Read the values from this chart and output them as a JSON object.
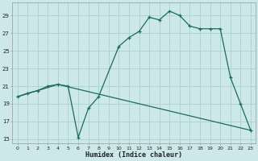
{
  "xlabel": "Humidex (Indice chaleur)",
  "bg_color": "#cce8e8",
  "line_color": "#1a6b62",
  "grid_color": "#aad0d0",
  "series_humidex": [
    [
      0,
      19.8
    ],
    [
      1,
      20.2
    ],
    [
      2,
      20.5
    ],
    [
      3,
      21.0
    ],
    [
      4,
      21.2
    ],
    [
      5,
      21.0
    ],
    [
      6,
      15.2
    ],
    [
      7,
      18.5
    ],
    [
      8,
      19.8
    ],
    [
      10,
      25.5
    ],
    [
      11,
      26.5
    ],
    [
      12,
      27.2
    ],
    [
      13,
      28.8
    ],
    [
      14,
      28.5
    ],
    [
      15,
      29.5
    ],
    [
      16,
      29.0
    ],
    [
      17,
      27.8
    ],
    [
      18,
      27.5
    ],
    [
      19,
      27.5
    ],
    [
      20,
      27.5
    ],
    [
      21,
      22.0
    ],
    [
      22,
      19.0
    ],
    [
      23,
      16.0
    ]
  ],
  "series_line": [
    [
      0,
      19.8
    ],
    [
      4,
      21.2
    ],
    [
      23,
      16.0
    ]
  ],
  "ylim": [
    14.5,
    30.5
  ],
  "xlim": [
    -0.5,
    23.5
  ],
  "yticks": [
    15,
    17,
    19,
    21,
    23,
    25,
    27,
    29
  ],
  "xticks": [
    0,
    1,
    2,
    3,
    4,
    5,
    6,
    7,
    8,
    9,
    10,
    11,
    12,
    13,
    14,
    15,
    16,
    17,
    18,
    19,
    20,
    21,
    22,
    23
  ],
  "tick_fontsize": 4.5,
  "xlabel_fontsize": 6,
  "spine_color": "#999999"
}
